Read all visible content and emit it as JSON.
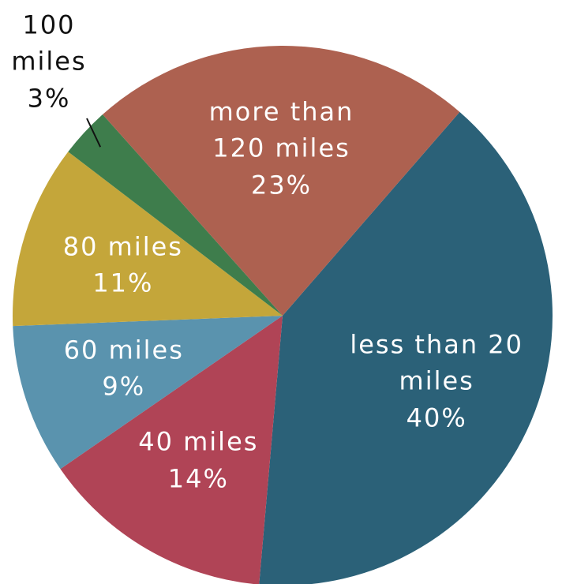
{
  "chart_data": {
    "type": "pie",
    "categories": [
      "less than 20 miles",
      "40 miles",
      "60 miles",
      "80 miles",
      "100 miles",
      "more than 120 miles"
    ],
    "values": [
      40,
      14,
      9,
      11,
      3,
      23
    ],
    "value_labels": [
      "40%",
      "14%",
      "9%",
      "11%",
      "3%",
      "23%"
    ],
    "colors": [
      "#2b6178",
      "#b04456",
      "#5a93ae",
      "#c4a63a",
      "#3e7d4c",
      "#ad6150"
    ]
  }
}
